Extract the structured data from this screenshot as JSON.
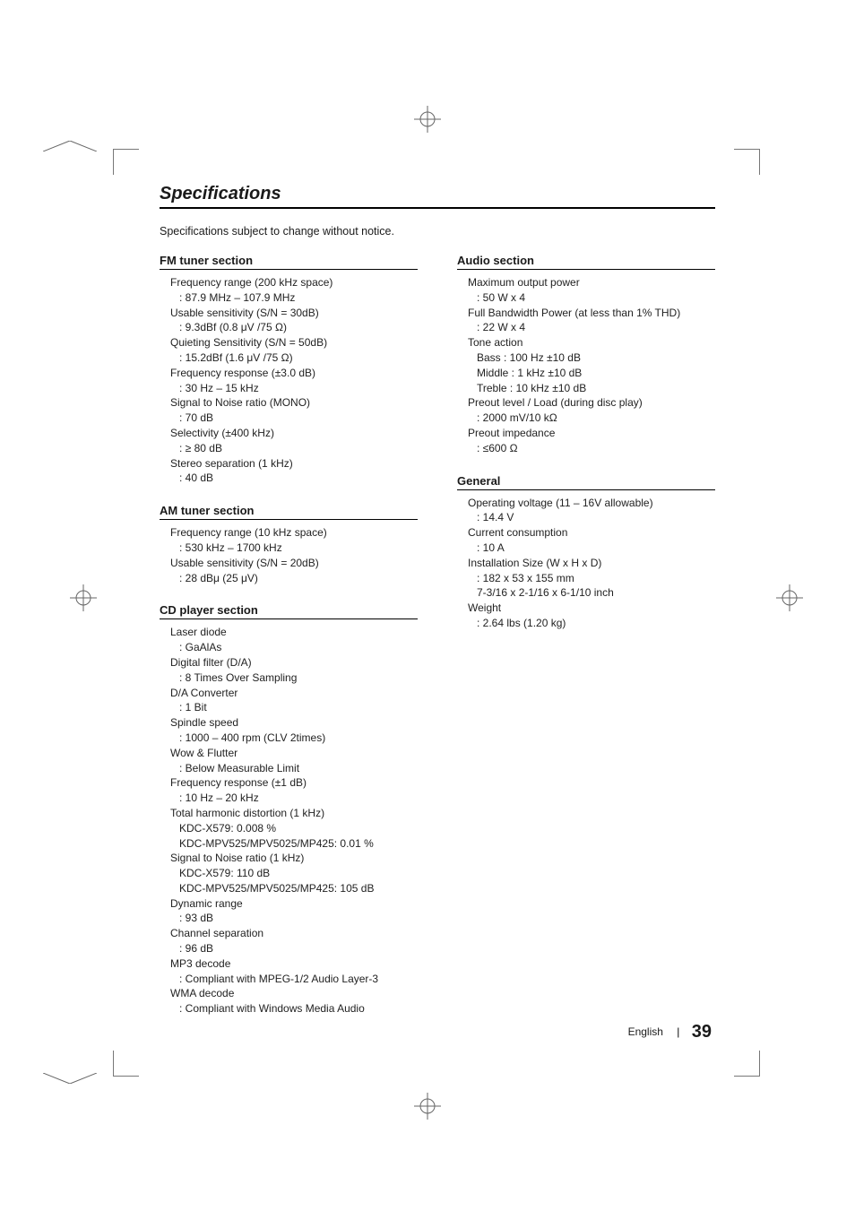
{
  "title": "Specifications",
  "subtitle": "Specifications subject to change without notice.",
  "footer": {
    "lang": "English",
    "page": "39"
  },
  "sections": {
    "fm": {
      "heading": "FM tuner section",
      "items": [
        {
          "label": "Frequency range (200 kHz space)",
          "values": [
            ": 87.9 MHz – 107.9 MHz"
          ]
        },
        {
          "label": "Usable sensitivity (S/N = 30dB)",
          "values": [
            ": 9.3dBf (0.8 μV  /75 Ω)"
          ]
        },
        {
          "label": "Quieting Sensitivity (S/N = 50dB)",
          "values": [
            ": 15.2dBf (1.6 μV  /75 Ω)"
          ]
        },
        {
          "label": "Frequency response (±3.0 dB)",
          "values": [
            ": 30 Hz – 15 kHz"
          ]
        },
        {
          "label": "Signal to Noise ratio (MONO)",
          "values": [
            ": 70 dB"
          ]
        },
        {
          "label": "Selectivity (±400 kHz)",
          "values": [
            ": ≥ 80 dB"
          ]
        },
        {
          "label": "Stereo separation (1 kHz)",
          "values": [
            ": 40 dB"
          ]
        }
      ]
    },
    "am": {
      "heading": "AM tuner section",
      "items": [
        {
          "label": "Frequency range (10 kHz space)",
          "values": [
            ": 530 kHz – 1700 kHz"
          ]
        },
        {
          "label": "Usable sensitivity (S/N = 20dB)",
          "values": [
            ": 28 dBμ (25 μV)"
          ]
        }
      ]
    },
    "cd": {
      "heading": "CD player section",
      "items": [
        {
          "label": "Laser diode",
          "values": [
            ": GaAlAs"
          ]
        },
        {
          "label": "Digital filter (D/A)",
          "values": [
            ": 8 Times Over Sampling"
          ]
        },
        {
          "label": "D/A Converter",
          "values": [
            ": 1 Bit"
          ]
        },
        {
          "label": "Spindle speed",
          "values": [
            ": 1000 – 400 rpm (CLV 2times)"
          ]
        },
        {
          "label": "Wow & Flutter",
          "values": [
            ": Below Measurable Limit"
          ]
        },
        {
          "label": "Frequency response (±1 dB)",
          "values": [
            ": 10 Hz – 20 kHz"
          ]
        },
        {
          "label": "Total harmonic distortion (1 kHz)",
          "values": [
            "KDC-X579: 0.008 %",
            "KDC-MPV525/MPV5025/MP425: 0.01 %"
          ]
        },
        {
          "label": "Signal to Noise ratio (1 kHz)",
          "values": [
            "KDC-X579: 110 dB",
            "KDC-MPV525/MPV5025/MP425: 105 dB"
          ]
        },
        {
          "label": "Dynamic range",
          "values": [
            ": 93 dB"
          ]
        },
        {
          "label": "Channel separation",
          "values": [
            ": 96 dB"
          ]
        },
        {
          "label": "MP3 decode",
          "values": [
            ": Compliant with MPEG-1/2 Audio Layer-3"
          ]
        },
        {
          "label": "WMA decode",
          "values": [
            ": Compliant with Windows Media Audio"
          ]
        }
      ]
    },
    "audio": {
      "heading": "Audio section",
      "items": [
        {
          "label": "Maximum output power",
          "values": [
            ": 50 W x 4"
          ]
        },
        {
          "label": "Full Bandwidth Power (at less than 1% THD)",
          "values": [
            ": 22 W x 4"
          ]
        },
        {
          "label": "Tone action",
          "values": [
            "Bass : 100 Hz ±10 dB",
            "Middle : 1 kHz ±10 dB",
            "Treble : 10 kHz ±10 dB"
          ]
        },
        {
          "label": "Preout level / Load (during disc play)",
          "values": [
            ": 2000 mV/10 kΩ"
          ]
        },
        {
          "label": "Preout impedance",
          "values": [
            ": ≤600 Ω"
          ]
        }
      ]
    },
    "general": {
      "heading": "General",
      "items": [
        {
          "label": "Operating voltage (11 – 16V allowable)",
          "values": [
            ": 14.4 V"
          ]
        },
        {
          "label": "Current consumption",
          "values": [
            ": 10 A"
          ]
        },
        {
          "label": "Installation Size (W x H x D)",
          "values": [
            ": 182 x 53 x 155 mm",
            "  7-3/16 x 2-1/16 x 6-1/10 inch"
          ]
        },
        {
          "label": "Weight",
          "values": [
            ": 2.64 lbs (1.20 kg)"
          ]
        }
      ]
    }
  }
}
